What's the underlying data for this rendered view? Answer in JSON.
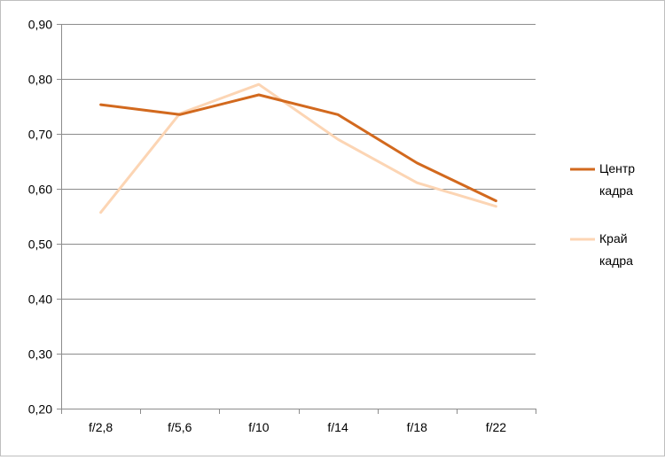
{
  "chart_data": {
    "type": "line",
    "categories": [
      "f/2,8",
      "f/5,6",
      "f/10",
      "f/14",
      "f/18",
      "f/22"
    ],
    "series": [
      {
        "name": "Центр кадра",
        "name_lines": [
          "Центр",
          "кадра"
        ],
        "values": [
          0.753,
          0.735,
          0.771,
          0.735,
          0.647,
          0.578
        ],
        "color": "#d2691e"
      },
      {
        "name": "Край кадра",
        "name_lines": [
          "Край",
          "кадра"
        ],
        "values": [
          0.557,
          0.737,
          0.79,
          0.69,
          0.611,
          0.568
        ],
        "color": "#fcd5b4"
      }
    ],
    "ylim": [
      0.2,
      0.9
    ],
    "yticks": [
      "0,20",
      "0,30",
      "0,40",
      "0,50",
      "0,60",
      "0,70",
      "0,80",
      "0,90"
    ],
    "title": "",
    "xlabel": "",
    "ylabel": "",
    "grid": true,
    "legend": "right"
  }
}
